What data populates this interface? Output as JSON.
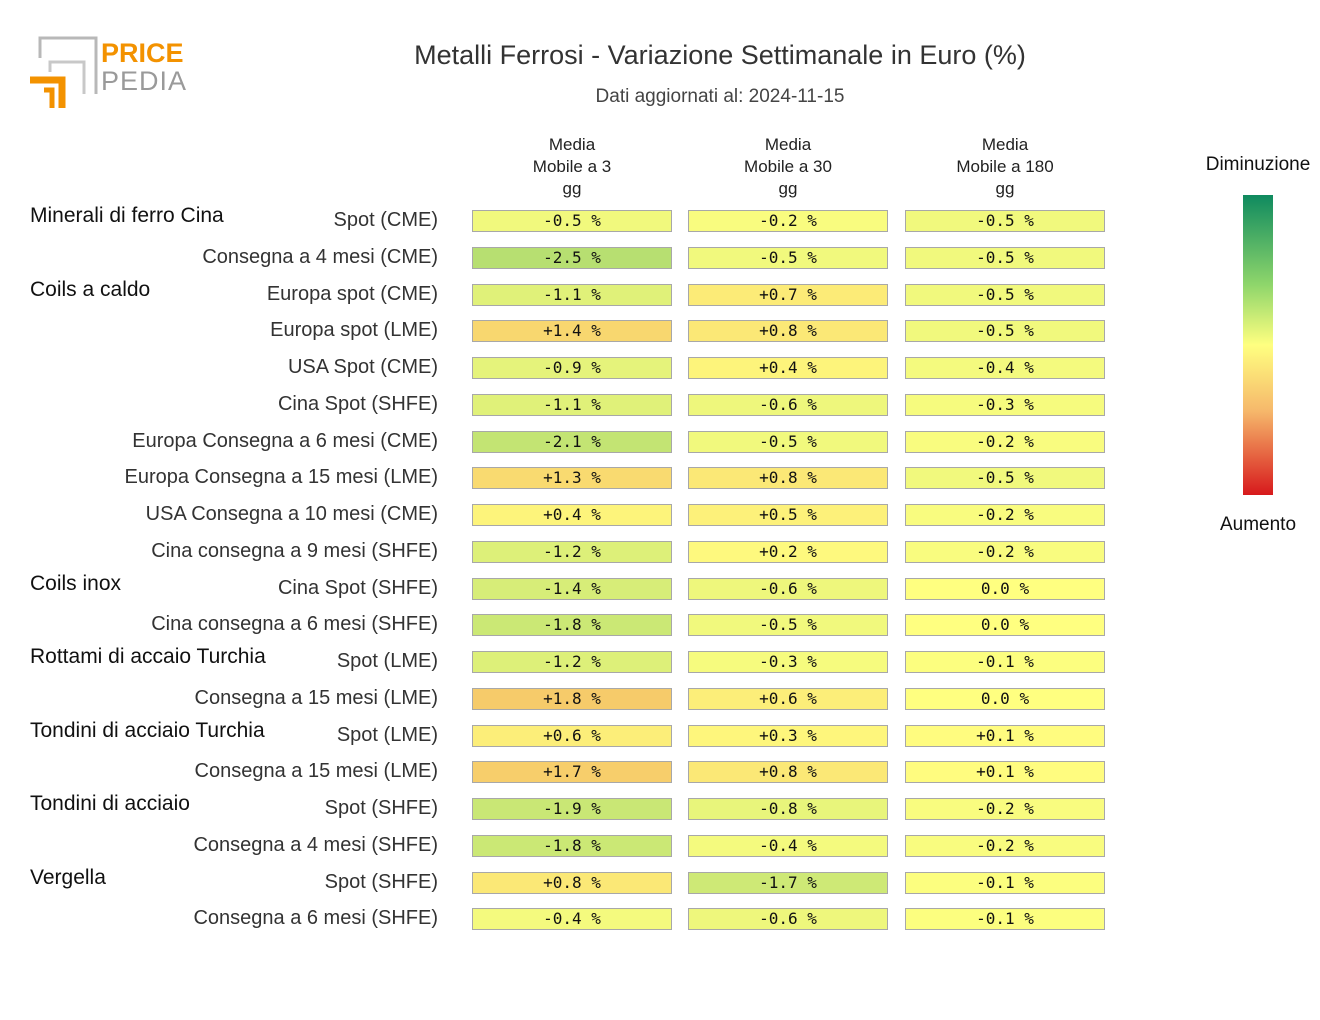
{
  "logo": {
    "line1": "PRICE",
    "line2": "PEDIA"
  },
  "header": {
    "title": "Metalli Ferrosi - Variazione Settimanale in Euro (%)",
    "subtitle": "Dati aggiornati al: 2024-11-15"
  },
  "legend": {
    "top": "Diminuzione",
    "bottom": "Aumento"
  },
  "colors": {
    "decrease": "#1a9850",
    "neutral": "#ffff80",
    "increase": "#d7191c"
  },
  "chart_data": {
    "type": "heatmap",
    "title": "Metalli Ferrosi - Variazione Settimanale in Euro (%)",
    "columns": [
      {
        "line1": "Media",
        "line2": "Mobile a 3",
        "line3": "gg"
      },
      {
        "line1": "Media",
        "line2": "Mobile a 30",
        "line3": "gg"
      },
      {
        "line1": "Media",
        "line2": "Mobile a 180",
        "line3": "gg"
      }
    ],
    "groups": [
      {
        "name": "Minerali di ferro Cina",
        "rows": [
          {
            "label": "Spot (CME)",
            "values": [
              -0.5,
              -0.2,
              -0.5
            ]
          },
          {
            "label": "Consegna a 4 mesi (CME)",
            "values": [
              -2.5,
              -0.5,
              -0.5
            ]
          }
        ]
      },
      {
        "name": "Coils a caldo",
        "rows": [
          {
            "label": "Europa spot (CME)",
            "values": [
              -1.1,
              0.7,
              -0.5
            ]
          },
          {
            "label": "Europa spot (LME)",
            "values": [
              1.4,
              0.8,
              -0.5
            ]
          },
          {
            "label": "USA Spot (CME)",
            "values": [
              -0.9,
              0.4,
              -0.4
            ]
          },
          {
            "label": "Cina Spot (SHFE)",
            "values": [
              -1.1,
              -0.6,
              -0.3
            ]
          },
          {
            "label": "Europa Consegna a 6 mesi (CME)",
            "values": [
              -2.1,
              -0.5,
              -0.2
            ]
          },
          {
            "label": "Europa Consegna a 15 mesi (LME)",
            "values": [
              1.3,
              0.8,
              -0.5
            ]
          },
          {
            "label": "USA Consegna a 10 mesi (CME)",
            "values": [
              0.4,
              0.5,
              -0.2
            ]
          },
          {
            "label": "Cina consegna a 9 mesi (SHFE)",
            "values": [
              -1.2,
              0.2,
              -0.2
            ]
          }
        ]
      },
      {
        "name": "Coils inox",
        "rows": [
          {
            "label": "Cina Spot (SHFE)",
            "values": [
              -1.4,
              -0.6,
              0.0
            ]
          },
          {
            "label": "Cina consegna a 6 mesi (SHFE)",
            "values": [
              -1.8,
              -0.5,
              0.0
            ]
          }
        ]
      },
      {
        "name": "Rottami di accaio Turchia",
        "rows": [
          {
            "label": "Spot (LME)",
            "values": [
              -1.2,
              -0.3,
              -0.1
            ]
          },
          {
            "label": "Consegna a 15 mesi (LME)",
            "values": [
              1.8,
              0.6,
              0.0
            ]
          }
        ]
      },
      {
        "name": "Tondini di acciaio Turchia",
        "rows": [
          {
            "label": "Spot (LME)",
            "values": [
              0.6,
              0.3,
              0.1
            ]
          },
          {
            "label": "Consegna a 15 mesi (LME)",
            "values": [
              1.7,
              0.8,
              0.1
            ]
          }
        ]
      },
      {
        "name": "Tondini di acciaio",
        "rows": [
          {
            "label": "Spot (SHFE)",
            "values": [
              -1.9,
              -0.8,
              -0.2
            ]
          },
          {
            "label": "Consegna a 4 mesi (SHFE)",
            "values": [
              -1.8,
              -0.4,
              -0.2
            ]
          }
        ]
      },
      {
        "name": "Vergella",
        "rows": [
          {
            "label": "Spot (SHFE)",
            "values": [
              0.8,
              -1.7,
              -0.1
            ]
          },
          {
            "label": "Consegna a 6 mesi (SHFE)",
            "values": [
              -0.4,
              -0.6,
              -0.1
            ]
          }
        ]
      }
    ]
  }
}
